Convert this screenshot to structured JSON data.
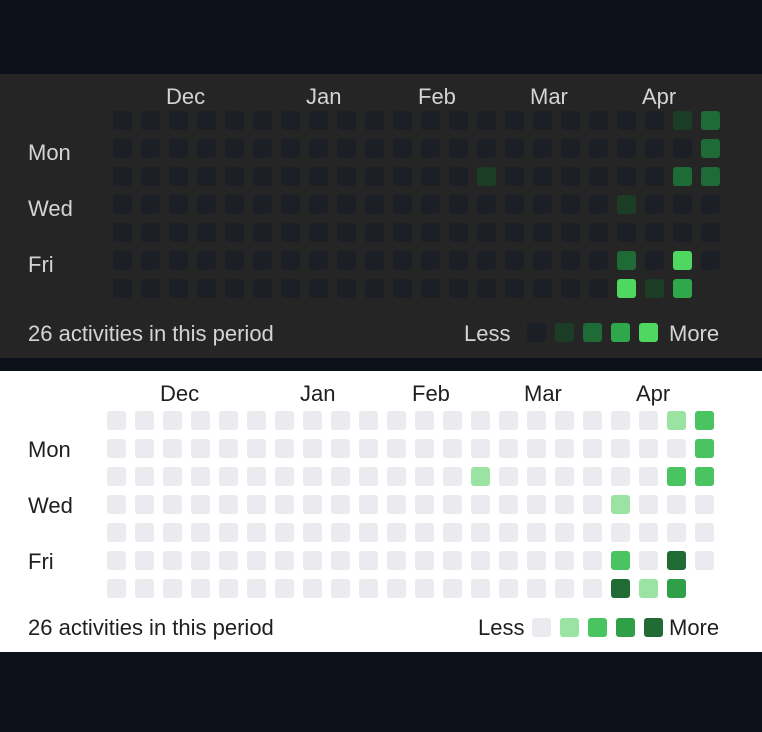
{
  "months": [
    "Dec",
    "Jan",
    "Feb",
    "Mar",
    "Apr"
  ],
  "weekdays": [
    "Mon",
    "Wed",
    "Fri"
  ],
  "summary": "26 activities in this period",
  "legend": {
    "less": "Less",
    "more": "More"
  },
  "weeks": 22,
  "last_week_days": 6,
  "active_cells": [
    {
      "week": 20,
      "day": 0,
      "level": 1
    },
    {
      "week": 21,
      "day": 0,
      "level": 2
    },
    {
      "week": 21,
      "day": 1,
      "level": 2
    },
    {
      "week": 13,
      "day": 2,
      "level": 1
    },
    {
      "week": 20,
      "day": 2,
      "level": 2
    },
    {
      "week": 21,
      "day": 2,
      "level": 2
    },
    {
      "week": 18,
      "day": 3,
      "level": 1
    },
    {
      "week": 18,
      "day": 5,
      "level": 2
    },
    {
      "week": 20,
      "day": 5,
      "level": 4
    },
    {
      "week": 18,
      "day": 6,
      "level": 4
    },
    {
      "week": 19,
      "day": 6,
      "level": 1
    },
    {
      "week": 20,
      "day": 6,
      "level": 3
    }
  ],
  "themes": {
    "dark": {
      "background": "#252525",
      "text": "#d4d4d4",
      "levels": [
        "#1c1f26",
        "#1b3d26",
        "#1f6b37",
        "#2ea84a",
        "#4ed862"
      ]
    },
    "light": {
      "background": "#ffffff",
      "text": "#1f1f1f",
      "levels": [
        "#ebebef",
        "#9be3a3",
        "#49c460",
        "#30a048",
        "#216b35"
      ]
    }
  }
}
